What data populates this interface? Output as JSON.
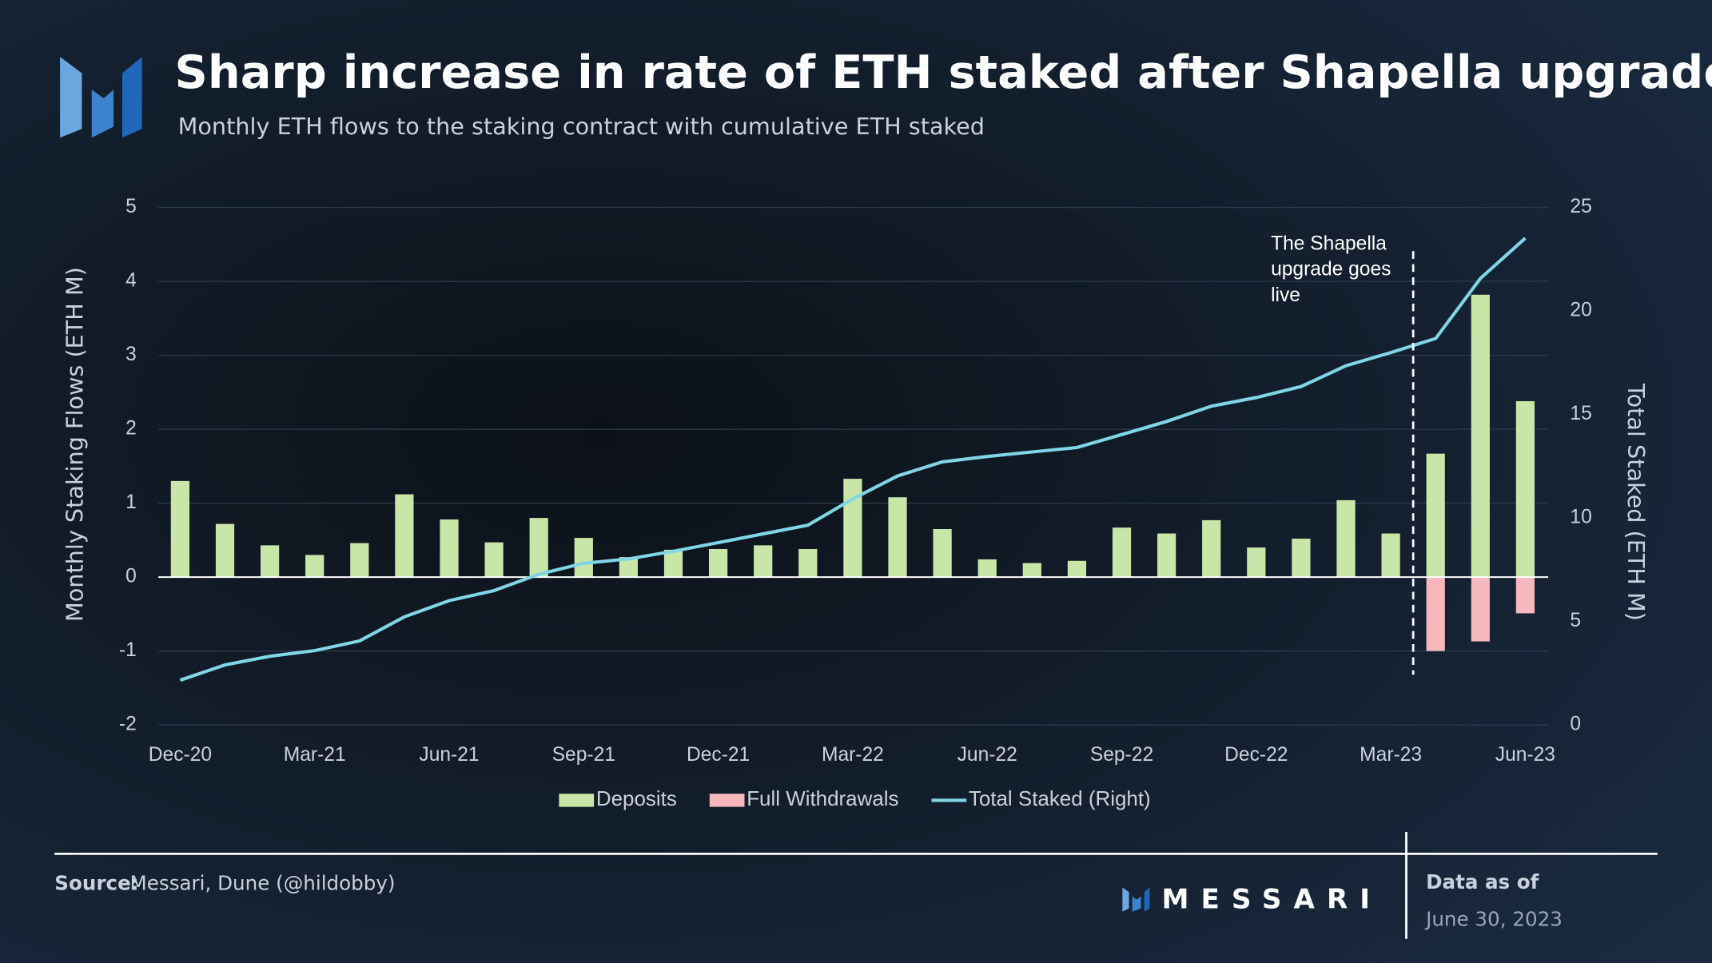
{
  "chart_data": {
    "type": "bar_line",
    "title": "Sharp increase in rate of ETH staked after Shapella upgrade",
    "subtitle": "Monthly ETH flows to the staking contract with cumulative ETH staked",
    "y_label": "Monthly Staking Flows (ETH M)",
    "y2_label": "Total Staked (ETH M)",
    "categories": [
      "Dec-20",
      null,
      null,
      "Mar-21",
      null,
      null,
      "Jun-21",
      null,
      null,
      "Sep-21",
      null,
      null,
      "Dec-21",
      null,
      null,
      "Mar-22",
      null,
      null,
      "Jun-22",
      null,
      null,
      "Sep-22",
      null,
      null,
      "Dec-22",
      null,
      null,
      "Mar-23",
      null,
      null,
      "Jun-23"
    ],
    "series": [
      {
        "name": "Deposits",
        "color": "#c8e6a8",
        "kind": "bar",
        "values": [
          1.3,
          0.72,
          0.43,
          0.3,
          0.46,
          1.12,
          0.78,
          0.47,
          0.8,
          0.53,
          0.27,
          0.37,
          0.38,
          0.43,
          0.38,
          1.33,
          1.08,
          0.65,
          0.24,
          0.19,
          0.22,
          0.67,
          0.59,
          0.77,
          0.4,
          0.52,
          1.04,
          0.59,
          1.67,
          3.82,
          2.38
        ]
      },
      {
        "name": "Full Withdrawals",
        "color": "#f6b8bd",
        "kind": "bar",
        "values": [
          null,
          null,
          null,
          null,
          null,
          null,
          null,
          null,
          null,
          null,
          null,
          null,
          null,
          null,
          null,
          null,
          null,
          null,
          null,
          null,
          null,
          null,
          null,
          null,
          null,
          null,
          null,
          null,
          -1.0,
          -0.87,
          -0.49
        ]
      },
      {
        "name": "Total Staked (Right)",
        "color": "#7fd6e6",
        "kind": "line",
        "axis": "y2",
        "values": [
          2.16,
          2.9,
          3.32,
          3.59,
          4.06,
          5.22,
          6.01,
          6.49,
          7.28,
          7.81,
          8.02,
          8.39,
          8.81,
          9.23,
          9.65,
          10.92,
          12.03,
          12.71,
          12.97,
          13.19,
          13.4,
          14.03,
          14.66,
          15.4,
          15.82,
          16.35,
          17.35,
          17.99,
          18.67,
          21.57,
          23.52
        ]
      }
    ],
    "ylim": [
      -2,
      5
    ],
    "yticks": [
      -2,
      -1,
      0,
      1,
      2,
      3,
      4,
      5
    ],
    "y2lim": [
      0,
      25
    ],
    "y2ticks": [
      0,
      5,
      10,
      15,
      20,
      25
    ],
    "grid": true,
    "annotation": {
      "lines": [
        "The Shapella",
        "upgrade goes",
        "live"
      ]
    }
  },
  "footer": {
    "source_label": "Source:",
    "source": "Messari, Dune (@hildobby)",
    "brand": "MESSARI",
    "date_label": "Data as of",
    "date": "June 30, 2023"
  }
}
